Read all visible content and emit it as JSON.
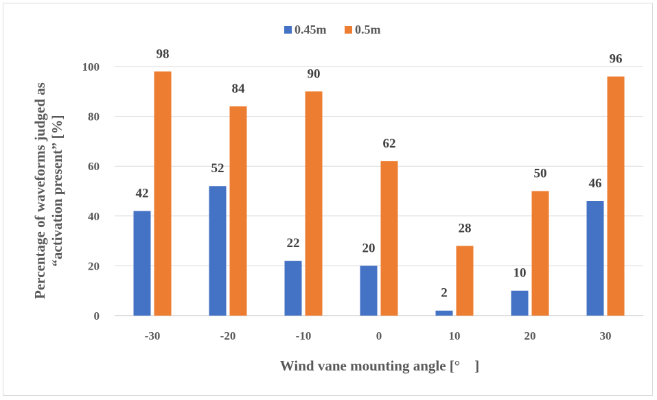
{
  "chart_data": {
    "type": "bar",
    "categories": [
      "-30",
      "-20",
      "-10",
      "0",
      "10",
      "20",
      "30"
    ],
    "series": [
      {
        "name": "0.45m",
        "color": "#4472c4",
        "values": [
          42,
          52,
          22,
          20,
          2,
          10,
          46
        ]
      },
      {
        "name": "0.5m",
        "color": "#ed7d31",
        "values": [
          98,
          84,
          90,
          62,
          28,
          50,
          96
        ]
      }
    ],
    "title": "",
    "xlabel": "Wind vane mounting angle [° ]",
    "ylabel": [
      "Percentage of waveforms judged as",
      "“activation present” [%]"
    ],
    "ylim": [
      0,
      100
    ],
    "yticks": [
      0,
      20,
      40,
      60,
      80,
      100
    ],
    "grid": true,
    "legend": "top-center",
    "data_labels": true
  }
}
